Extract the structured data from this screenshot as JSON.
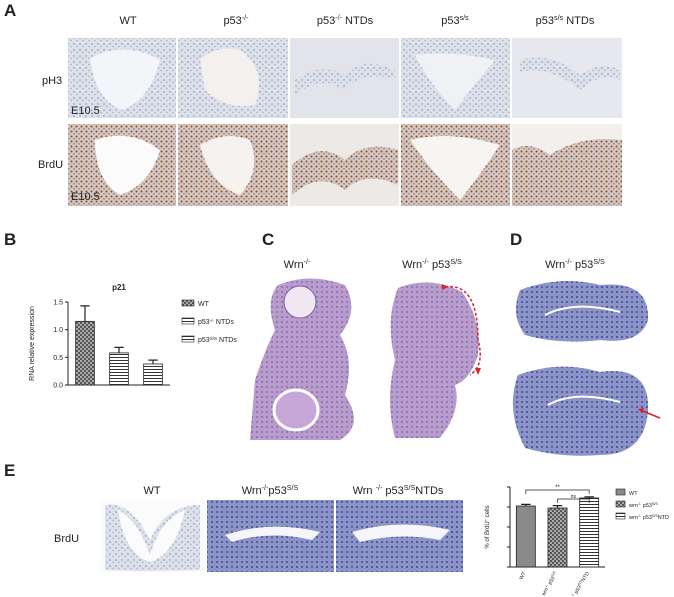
{
  "panels": [
    "A",
    "B",
    "C",
    "D",
    "E"
  ],
  "figure_a": {
    "columns": [
      {
        "text": "WT"
      },
      {
        "text": "p53",
        "sup": "-/-"
      },
      {
        "text": "p53",
        "sup": "-/-",
        "after": " NTDs"
      },
      {
        "text": "p53",
        "sup": "s/s"
      },
      {
        "text": "p53",
        "sup": "s/s",
        "after": " NTDs"
      }
    ],
    "rows": [
      "pH3",
      "BrdU"
    ],
    "stage": [
      "E10.5",
      "E10.5"
    ]
  },
  "figure_c": {
    "columns": [
      {
        "text": "Wrn",
        "sup": "-/-"
      },
      {
        "text": "Wrn",
        "sup": "-/-",
        "after": " p53",
        "sup2": "S/S"
      }
    ]
  },
  "figure_d": {
    "label": {
      "text": "Wrn",
      "sup": "-/-",
      "after": " p53",
      "sup2": "S/S"
    }
  },
  "figure_e": {
    "columns": [
      {
        "text": "WT"
      },
      {
        "text": "Wrn",
        "sup": "-/-",
        "after": "p53",
        "sup2": "S/S"
      },
      {
        "text": "Wrn ",
        "sup": "-/-",
        "after": " p53",
        "sup2": "S/S",
        "after2": "NTDs"
      }
    ],
    "row": "BrdU"
  },
  "chart_data": [
    {
      "type": "bar",
      "title": "p21",
      "y_label": "RNA relative expression",
      "legend": [
        {
          "text": "WT"
        },
        {
          "text": "p53",
          "sup": "-/-",
          "after": " NTDs"
        },
        {
          "text": "p53",
          "sup": "S/S",
          "after": " NTDs"
        }
      ],
      "values": [
        1.15,
        0.58,
        0.38
      ],
      "errors": [
        0.28,
        0.1,
        0.07
      ],
      "patterns": [
        "check",
        "stripes",
        "stripes"
      ],
      "ylim": [
        0,
        1.5
      ],
      "yticks": [
        {
          "value": 0,
          "label": "0.0"
        },
        {
          "value": 0.5,
          "label": "0.5"
        },
        {
          "value": 1,
          "label": "1.0"
        },
        {
          "value": 1.5,
          "label": "1.5"
        }
      ]
    },
    {
      "type": "bar",
      "y_label": {
        "text": "% of BrdU",
        "sup": "+",
        "after": " cells"
      },
      "categories": [
        {
          "text": "WT"
        },
        {
          "text": "wrn",
          "sup": "-/-",
          "after": " p53",
          "sup2": "S/S"
        },
        {
          "text": "wrn",
          "sup": "-/-",
          "after": " p53",
          "sup2": "S/S",
          "after2": "NTD"
        }
      ],
      "legend": [
        {
          "text": "WT"
        },
        {
          "text": "wrn",
          "sup": "-/-",
          "after": " p53",
          "sup2": "S/S"
        },
        {
          "text": "wrn",
          "sup": "-/-",
          "after": " p53",
          "sup2": "S/S",
          "after2": "NTD"
        }
      ],
      "values": [
        30.5,
        29.5,
        34.5
      ],
      "errors": [
        0.8,
        1.2,
        0.6
      ],
      "patterns": [
        "solid",
        "check",
        "stripes"
      ],
      "annotations": [
        "**",
        "ns"
      ],
      "ylim": [
        0,
        40
      ],
      "yticks": [
        0,
        10,
        20,
        30,
        40
      ]
    }
  ]
}
